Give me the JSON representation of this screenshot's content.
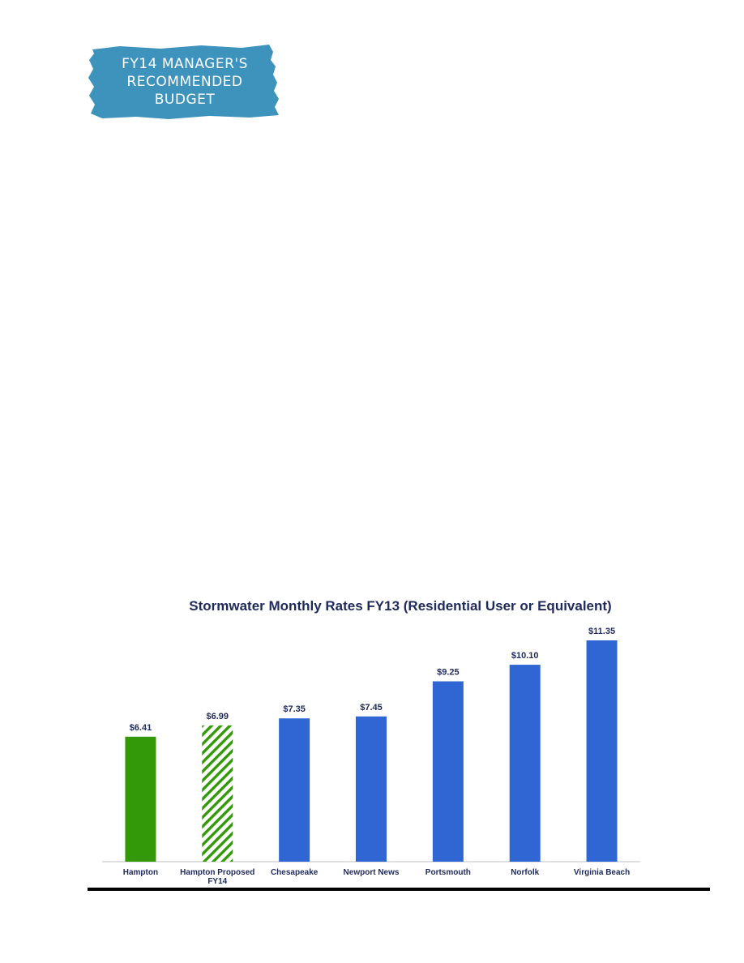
{
  "banner": {
    "line1": "FY14 MANAGER'S",
    "line2": "RECOMMENDED",
    "line3": "BUDGET",
    "color": "#3e93bd"
  },
  "colors": {
    "hampton": "#339908",
    "proposed_stripe": "#339908",
    "others": "#3066d4",
    "text": "#1f2a5c"
  },
  "chart_data": {
    "type": "bar",
    "title": "Stormwater Monthly Rates FY13 (Residential User or Equivalent)",
    "categories": [
      "Hampton",
      "Hampton Proposed FY14",
      "Chesapeake",
      "Newport News",
      "Portsmouth",
      "Norfolk",
      "Virginia Beach"
    ],
    "values": [
      6.41,
      6.99,
      7.35,
      7.45,
      9.25,
      10.1,
      11.35
    ],
    "value_labels": [
      "$6.41",
      "$6.99",
      "$7.35",
      "$7.45",
      "$9.25",
      "$10.10",
      "$11.35"
    ],
    "bar_styles": [
      "solid-green",
      "hatched-green",
      "solid-blue",
      "solid-blue",
      "solid-blue",
      "solid-blue",
      "solid-blue"
    ],
    "xlabel": "",
    "ylabel": "",
    "ylim": [
      0,
      11.35
    ],
    "grid": false,
    "legend": "none"
  }
}
